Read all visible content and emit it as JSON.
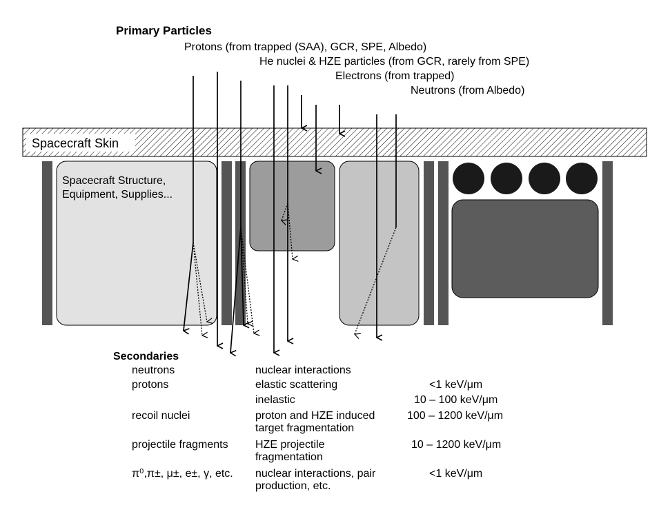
{
  "primary": {
    "heading": "Primary Particles",
    "protons": "Protons (from trapped (SAA), GCR, SPE, Albedo)",
    "he_hze": "He nuclei & HZE particles (from GCR, rarely from SPE)",
    "electrons": "Electrons (from trapped)",
    "neutrons": "Neutrons (from Albedo)"
  },
  "skin_label": "Spacecraft Skin",
  "structure_label_1": "Spacecraft Structure,",
  "structure_label_2": "Equipment, Supplies...",
  "secondaries": {
    "heading": "Secondaries",
    "rows": [
      {
        "particle": "neutrons",
        "process": "nuclear interactions",
        "let": ""
      },
      {
        "particle": "protons",
        "process": "elastic scattering",
        "let": "<1 keV/μm"
      },
      {
        "particle": "",
        "process": "inelastic",
        "let": "10 – 100 keV/μm"
      },
      {
        "particle": "recoil nuclei",
        "process": "proton and HZE induced target fragmentation",
        "let": "100 – 1200 keV/μm"
      },
      {
        "particle": "projectile fragments",
        "process": "HZE projectile fragmentation",
        "let": "10 – 1200 keV/μm"
      },
      {
        "particle": "π⁰,π±, μ±, e±, γ, etc.",
        "process": "nuclear interactions, pair production, etc.",
        "let": "<1 keV/μm"
      }
    ]
  }
}
